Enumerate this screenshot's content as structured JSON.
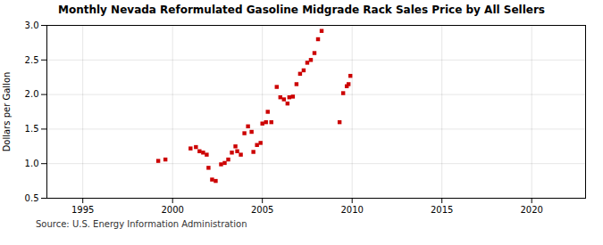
{
  "chart_data": {
    "type": "scatter",
    "title": "Monthly Nevada Reformulated Gasoline Midgrade Rack Sales Price by All Sellers",
    "ylabel": "Dollars per Gallon",
    "source": "Source: U.S. Energy Information Administration",
    "color": "#cc0000",
    "marker": "square",
    "grid": true,
    "xlim": [
      1993,
      2023
    ],
    "ylim": [
      0.5,
      3.0
    ],
    "xticks": [
      1995,
      2000,
      2005,
      2010,
      2015,
      2020
    ],
    "yticks": [
      0.5,
      {
        "value": 1.0,
        "label": "1.0"
      },
      1.5,
      {
        "value": 2.0,
        "label": "2.0"
      },
      2.5,
      {
        "value": 3.0,
        "label": "3.0"
      }
    ],
    "x": [
      1999.2,
      1999.6,
      2001.0,
      2001.3,
      2001.5,
      2001.7,
      2001.9,
      2002.0,
      2002.2,
      2002.4,
      2002.7,
      2002.9,
      2003.1,
      2003.3,
      2003.5,
      2003.6,
      2003.8,
      2004.0,
      2004.2,
      2004.4,
      2004.5,
      2004.7,
      2004.9,
      2005.0,
      2005.2,
      2005.3,
      2005.5,
      2005.8,
      2006.0,
      2006.2,
      2006.4,
      2006.5,
      2006.7,
      2006.9,
      2007.1,
      2007.3,
      2007.5,
      2007.7,
      2007.9,
      2008.1,
      2008.3,
      2009.3,
      2009.5,
      2009.7,
      2009.8,
      2009.9
    ],
    "values": [
      1.04,
      1.06,
      1.22,
      1.24,
      1.18,
      1.16,
      1.13,
      0.94,
      0.77,
      0.75,
      0.99,
      1.01,
      1.06,
      1.16,
      1.25,
      1.18,
      1.13,
      1.44,
      1.54,
      1.46,
      1.17,
      1.27,
      1.3,
      1.58,
      1.6,
      1.75,
      1.6,
      2.11,
      1.96,
      1.93,
      1.87,
      1.96,
      1.97,
      2.15,
      2.3,
      2.35,
      2.46,
      2.5,
      2.6,
      2.8,
      2.92,
      1.6,
      2.02,
      2.12,
      2.15,
      2.27
    ]
  }
}
